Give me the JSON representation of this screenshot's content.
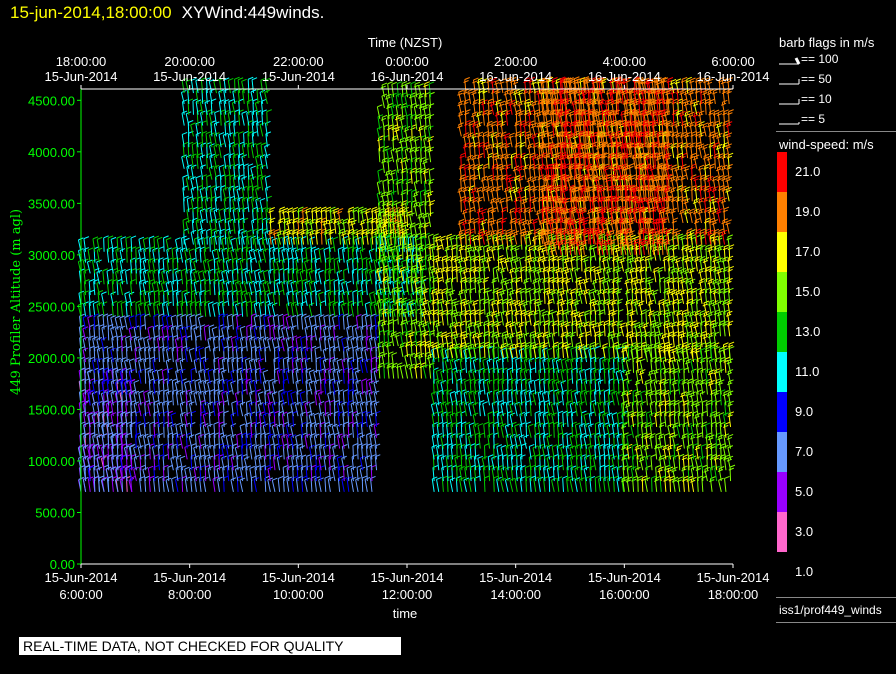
{
  "header": {
    "datetime": "15-jun-2014,18:00:00",
    "product": "XYWind:449winds."
  },
  "quality_banner": "REAL-TIME DATA, NOT CHECKED FOR QUALITY",
  "legend": {
    "barb_title": "barb flags in m/s",
    "barb_entries": [
      "== 100",
      "== 50",
      "== 10",
      "== 5"
    ],
    "speed_title": "wind-speed: m/s",
    "speed_levels": [
      "21.0",
      "19.0",
      "17.0",
      "15.0",
      "13.0",
      "11.0",
      "9.0",
      "7.0",
      "5.0",
      "3.0",
      "1.0"
    ],
    "source": "iss1/prof449_winds"
  },
  "chart_data": {
    "type": "wind-barb time-height",
    "top_axis_title": "Time (NZST)",
    "top_ticks": [
      {
        "time": "18:00:00",
        "date": "15-Jun-2014"
      },
      {
        "time": "20:00:00",
        "date": "15-Jun-2014"
      },
      {
        "time": "22:00:00",
        "date": "15-Jun-2014"
      },
      {
        "time": "0:00:00",
        "date": "16-Jun-2014"
      },
      {
        "time": "2:00:00",
        "date": "16-Jun-2014"
      },
      {
        "time": "4:00:00",
        "date": "16-Jun-2014"
      },
      {
        "time": "6:00:00",
        "date": "16-Jun-2014"
      }
    ],
    "xlabel": "time",
    "bottom_ticks": [
      {
        "date": "15-Jun-2014",
        "time": "6:00:00"
      },
      {
        "date": "15-Jun-2014",
        "time": "8:00:00"
      },
      {
        "date": "15-Jun-2014",
        "time": "10:00:00"
      },
      {
        "date": "15-Jun-2014",
        "time": "12:00:00"
      },
      {
        "date": "15-Jun-2014",
        "time": "14:00:00"
      },
      {
        "date": "15-Jun-2014",
        "time": "16:00:00"
      },
      {
        "date": "15-Jun-2014",
        "time": "18:00:00"
      }
    ],
    "ylabel": "449 Profiler Altitude (m agl)",
    "yticks": [
      "0.00",
      "500.00",
      "1000.00",
      "1500.00",
      "2000.00",
      "2500.00",
      "3000.00",
      "3500.00",
      "4000.00",
      "4500.00"
    ],
    "ylim": [
      0,
      4600
    ],
    "xlim_hours_utc": [
      6,
      18
    ],
    "colorbar": {
      "colors": [
        "#ff0000",
        "#ff8000",
        "#ffff00",
        "#80ff00",
        "#00cc00",
        "#00ffff",
        "#0000ff",
        "#6699ff",
        "#9900ff",
        "#ff66cc"
      ],
      "labels": [
        "21.0",
        "19.0",
        "17.0",
        "15.0",
        "13.0",
        "11.0",
        "9.0",
        "7.0",
        "5.0",
        "3.0",
        "1.0"
      ]
    },
    "speed_regions": [
      {
        "hours": [
          6.0,
          7.0
        ],
        "alt": [
          700,
          1800
        ],
        "speed": 5
      },
      {
        "hours": [
          6.0,
          12.3
        ],
        "alt": [
          2400,
          3100
        ],
        "speed": 12
      },
      {
        "hours": [
          6.0,
          11.5
        ],
        "alt": [
          700,
          2300
        ],
        "speed": 7
      },
      {
        "hours": [
          7.9,
          9.5
        ],
        "alt": [
          3100,
          4600
        ],
        "speed": 12
      },
      {
        "hours": [
          9.5,
          12.0
        ],
        "alt": [
          3100,
          3400
        ],
        "speed": 17
      },
      {
        "hours": [
          11.5,
          12.5
        ],
        "alt": [
          1800,
          4600
        ],
        "speed": 15
      },
      {
        "hours": [
          12.5,
          16.0
        ],
        "alt": [
          700,
          2000
        ],
        "speed": 12
      },
      {
        "hours": [
          12.5,
          18.0
        ],
        "alt": [
          2000,
          3100
        ],
        "speed": 16
      },
      {
        "hours": [
          13.0,
          18.0
        ],
        "alt": [
          3100,
          4600
        ],
        "speed": 19
      },
      {
        "hours": [
          16.0,
          18.0
        ],
        "alt": [
          700,
          2000
        ],
        "speed": 15
      },
      {
        "hours": [
          14.5,
          16.8
        ],
        "alt": [
          3000,
          4600
        ],
        "speed": 20
      }
    ]
  }
}
